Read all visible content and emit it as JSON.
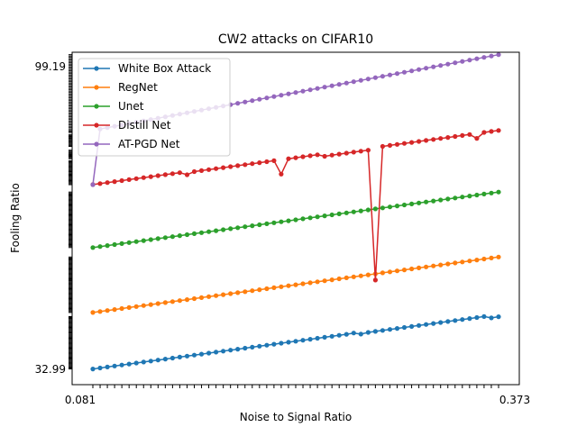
{
  "chart_data": {
    "type": "line",
    "title": "CW2 attacks on CIFAR10",
    "xlabel": "Noise to Signal Ratio",
    "ylabel": "Fooling Ratio",
    "legend_position": "top-left",
    "grid": false,
    "x_first_tick_label": "0.081",
    "x_last_tick_label": "0.373",
    "y_first_tick_label": "32.99",
    "y_last_tick_label": "99.19",
    "n_points": 57,
    "series": [
      {
        "name": "White Box Attack",
        "color": "#1f77b4",
        "values": [
          409.6,
          408.5,
          407.4,
          406.3,
          405.2,
          404.1,
          403,
          401.9,
          400.8,
          399.7,
          398.6,
          397.5,
          396.4,
          395.3,
          394.2,
          393.1,
          392,
          390.9,
          389.8,
          388.7,
          387.6,
          386.5,
          385.4,
          384.3,
          383.2,
          382.1,
          381,
          379.9,
          378.8,
          377.7,
          376.6,
          375.5,
          374.4,
          373.3,
          372.2,
          371.1,
          369.7,
          370.9,
          369,
          367.9,
          366.8,
          365.7,
          364.6,
          363.5,
          362.4,
          361.3,
          360.2,
          359.1,
          358,
          356.9,
          355.8,
          354.7,
          353.6,
          352.5,
          351.4,
          352.9,
          351.6
        ]
      },
      {
        "name": "RegNet",
        "color": "#ff7f0e",
        "values": [
          346.9,
          345.8,
          344.7,
          343.6,
          342.5,
          341.4,
          340.3,
          339.2,
          338.1,
          337,
          335.9,
          334.8,
          333.7,
          332.6,
          331.5,
          330.4,
          329.3,
          328.2,
          327.1,
          326,
          324.9,
          323.8,
          322.7,
          321.6,
          320.5,
          319.4,
          318.3,
          317.2,
          316.1,
          315,
          313.9,
          312.8,
          311.7,
          310.6,
          309.5,
          308.4,
          307.3,
          306.2,
          305.1,
          304,
          302.9,
          301.8,
          300.7,
          299.6,
          298.5,
          297.4,
          296.3,
          295.2,
          294.1,
          293,
          291.9,
          290.8,
          289.7,
          288.6,
          287.5,
          286.4,
          285.3
        ]
      },
      {
        "name": "Unet",
        "color": "#2ca02c",
        "values": [
          274.8,
          273.7,
          272.6,
          271.5,
          270.4,
          269.3,
          268.2,
          267.1,
          266,
          264.9,
          263.8,
          262.7,
          261.6,
          260.5,
          259.4,
          258.3,
          257.2,
          256.1,
          255,
          253.9,
          252.8,
          251.7,
          250.6,
          249.5,
          248.4,
          247.3,
          246.2,
          245.1,
          244,
          242.9,
          241.8,
          240.7,
          239.6,
          238.5,
          237.4,
          236.3,
          235.2,
          234.1,
          233,
          231.9,
          230.8,
          229.7,
          228.6,
          227.5,
          226.4,
          225.3,
          224.2,
          223.1,
          222,
          220.9,
          219.8,
          218.7,
          217.6,
          216.5,
          215.4,
          214.3,
          213.2
        ]
      },
      {
        "name": "Distill Net",
        "color": "#d62728",
        "values": [
          204.9,
          203.8,
          202.7,
          201.6,
          200.5,
          199.4,
          198.3,
          197.2,
          196.1,
          195,
          193.9,
          192.8,
          191.7,
          194,
          190.5,
          189.4,
          188.3,
          187.2,
          186.1,
          185,
          183.9,
          182.8,
          181.7,
          180.6,
          179.5,
          178.4,
          193.3,
          176.2,
          175.1,
          174,
          172.9,
          171.8,
          173.5,
          172.2,
          171.1,
          170,
          168.9,
          167.8,
          166.7,
          310.9,
          162.5,
          161.4,
          160.3,
          159.2,
          158.1,
          157,
          155.9,
          154.8,
          153.7,
          152.6,
          151.5,
          150.4,
          149.3,
          153.6,
          147,
          145.9,
          144.8
        ]
      },
      {
        "name": "AT-PGD Net",
        "color": "#9467bd",
        "values": [
          205,
          143.2,
          141.7,
          140.2,
          138.7,
          137.2,
          135.7,
          134.2,
          132.7,
          131.2,
          129.7,
          128.2,
          126.7,
          125.2,
          123.7,
          122.2,
          120.7,
          119.2,
          117.7,
          116.2,
          114.7,
          113.2,
          111.7,
          110.2,
          108.7,
          107.2,
          105.7,
          104.2,
          102.7,
          101.2,
          99.7,
          98.2,
          96.7,
          95.2,
          93.7,
          92.2,
          90.7,
          89.2,
          87.7,
          86.2,
          84.7,
          83.2,
          81.7,
          80.2,
          78.7,
          77.2,
          75.7,
          74.2,
          72.7,
          71.2,
          69.7,
          68.2,
          66.7,
          65.2,
          63.7,
          62.2,
          60.7
        ]
      }
    ]
  }
}
